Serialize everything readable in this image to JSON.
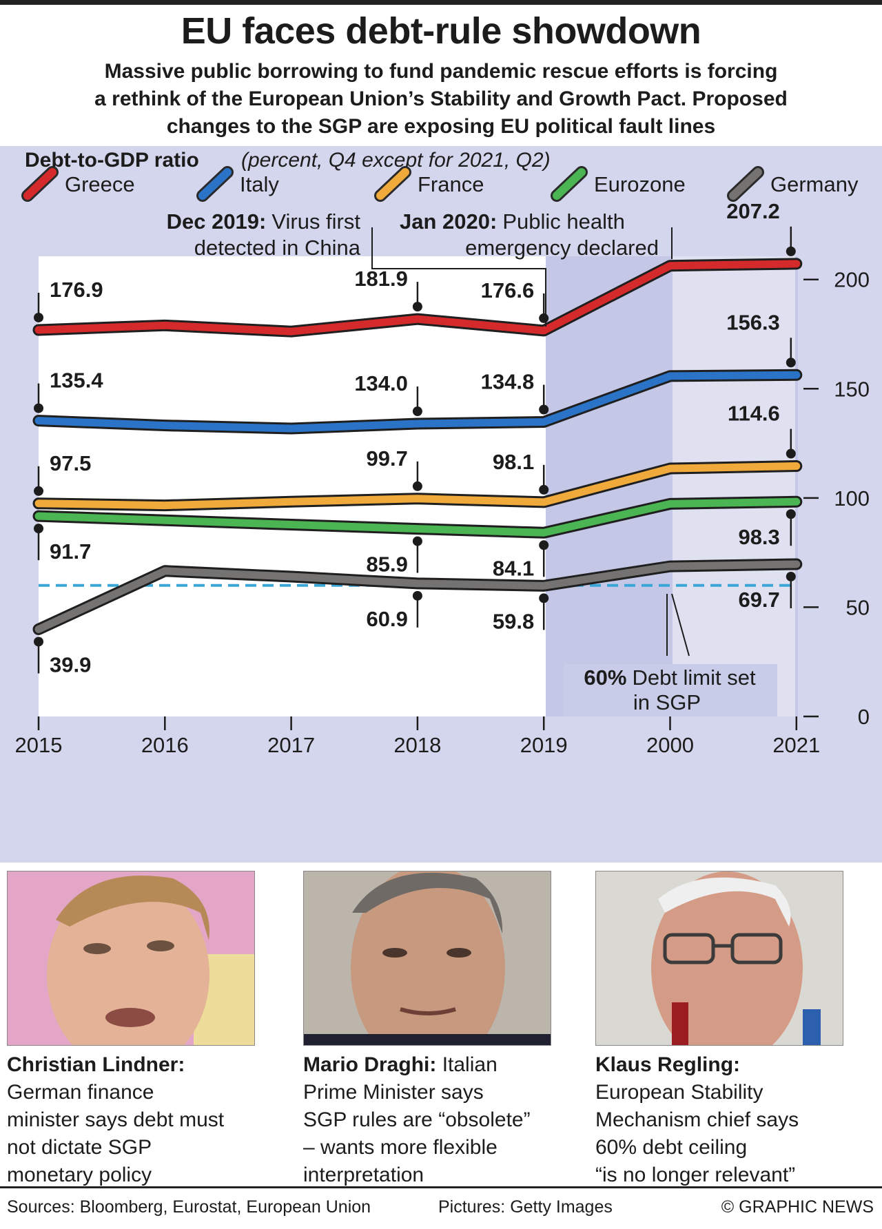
{
  "header": {
    "title": "EU faces debt-rule showdown",
    "subtitle_lines": [
      "Massive public borrowing to fund pandemic rescue efforts is forcing",
      "a rethink of the European Union’s Stability and Growth Pact. Proposed",
      "changes to the SGP are exposing EU political fault lines"
    ]
  },
  "chart_data": {
    "type": "line",
    "title": "Debt-to-GDP ratio",
    "title_note": "(percent, Q4 except for 2021, Q2)",
    "categories": [
      "2015",
      "2016",
      "2017",
      "2018",
      "2019",
      "2000",
      "2021"
    ],
    "ylim": [
      0,
      210
    ],
    "yticks": [
      0,
      50,
      100,
      150,
      200
    ],
    "grid": false,
    "legend_position": "top",
    "series": [
      {
        "name": "Greece",
        "color": "#d42a2c",
        "values": [
          176.9,
          179,
          176.2,
          181.9,
          176.6,
          206.3,
          207.2
        ],
        "labels": {
          "0": "176.9",
          "3": "181.9",
          "4": "176.6",
          "6": "207.2"
        }
      },
      {
        "name": "Italy",
        "color": "#2b73c6",
        "values": [
          135.4,
          133.2,
          131.8,
          134.0,
          134.8,
          155.8,
          156.3
        ],
        "labels": {
          "0": "135.4",
          "3": "134.0",
          "4": "134.8",
          "6": "156.3"
        }
      },
      {
        "name": "France",
        "color": "#efaa3b",
        "values": [
          97.5,
          96.6,
          98.3,
          99.7,
          98.1,
          113.5,
          114.6
        ],
        "labels": {
          "0": "97.5",
          "3": "99.7",
          "4": "98.1",
          "6": "114.6"
        }
      },
      {
        "name": "Eurozone",
        "color": "#4ab552",
        "values": [
          91.7,
          89.8,
          87.8,
          85.9,
          84.1,
          97.3,
          98.3
        ],
        "labels": {
          "0": "91.7",
          "3": "85.9",
          "4": "84.1",
          "6": "98.3"
        }
      },
      {
        "name": "Germany",
        "color": "#747372",
        "values": [
          39.9,
          66.6,
          64.0,
          60.9,
          59.8,
          68.7,
          69.7
        ],
        "labels": {
          "0": "39.9",
          "3": "60.9",
          "4": "59.8",
          "6": "69.7"
        }
      }
    ],
    "reference_line": {
      "value": 60,
      "color": "#3aa6d8",
      "label_bold": "60%",
      "label_rest_line1": "Debt limit set",
      "label_line2": "in SGP"
    },
    "annotations": [
      {
        "bold": "Dec 2019:",
        "text_line1": "Virus first",
        "text_line2": "detected in China"
      },
      {
        "bold": "Jan 2020:",
        "text_line1": "Public health",
        "text_line2": "emergency declared"
      }
    ]
  },
  "people": [
    {
      "name": "Christian Lindner:",
      "lines": [
        "German finance",
        "minister says debt must",
        "not dictate SGP",
        "monetary policy"
      ],
      "bg": "#e2a4c6"
    },
    {
      "name": "Mario Draghi:",
      "first_line_rest": "Italian",
      "lines": [
        "Prime Minister says",
        "SGP rules are “obsolete”",
        "– wants more flexible",
        "interpretation"
      ],
      "bg": "#b9b3aa"
    },
    {
      "name": "Klaus Regling:",
      "lines": [
        "European Stability",
        "Mechanism chief says",
        "60% debt ceiling",
        "“is no longer relevant”"
      ],
      "bg": "#d9d7d2"
    }
  ],
  "footer": {
    "sources": "Sources: Bloomberg, Eurostat, European Union",
    "pictures": "Pictures: Getty Images",
    "credit": "© GRAPHIC NEWS"
  }
}
